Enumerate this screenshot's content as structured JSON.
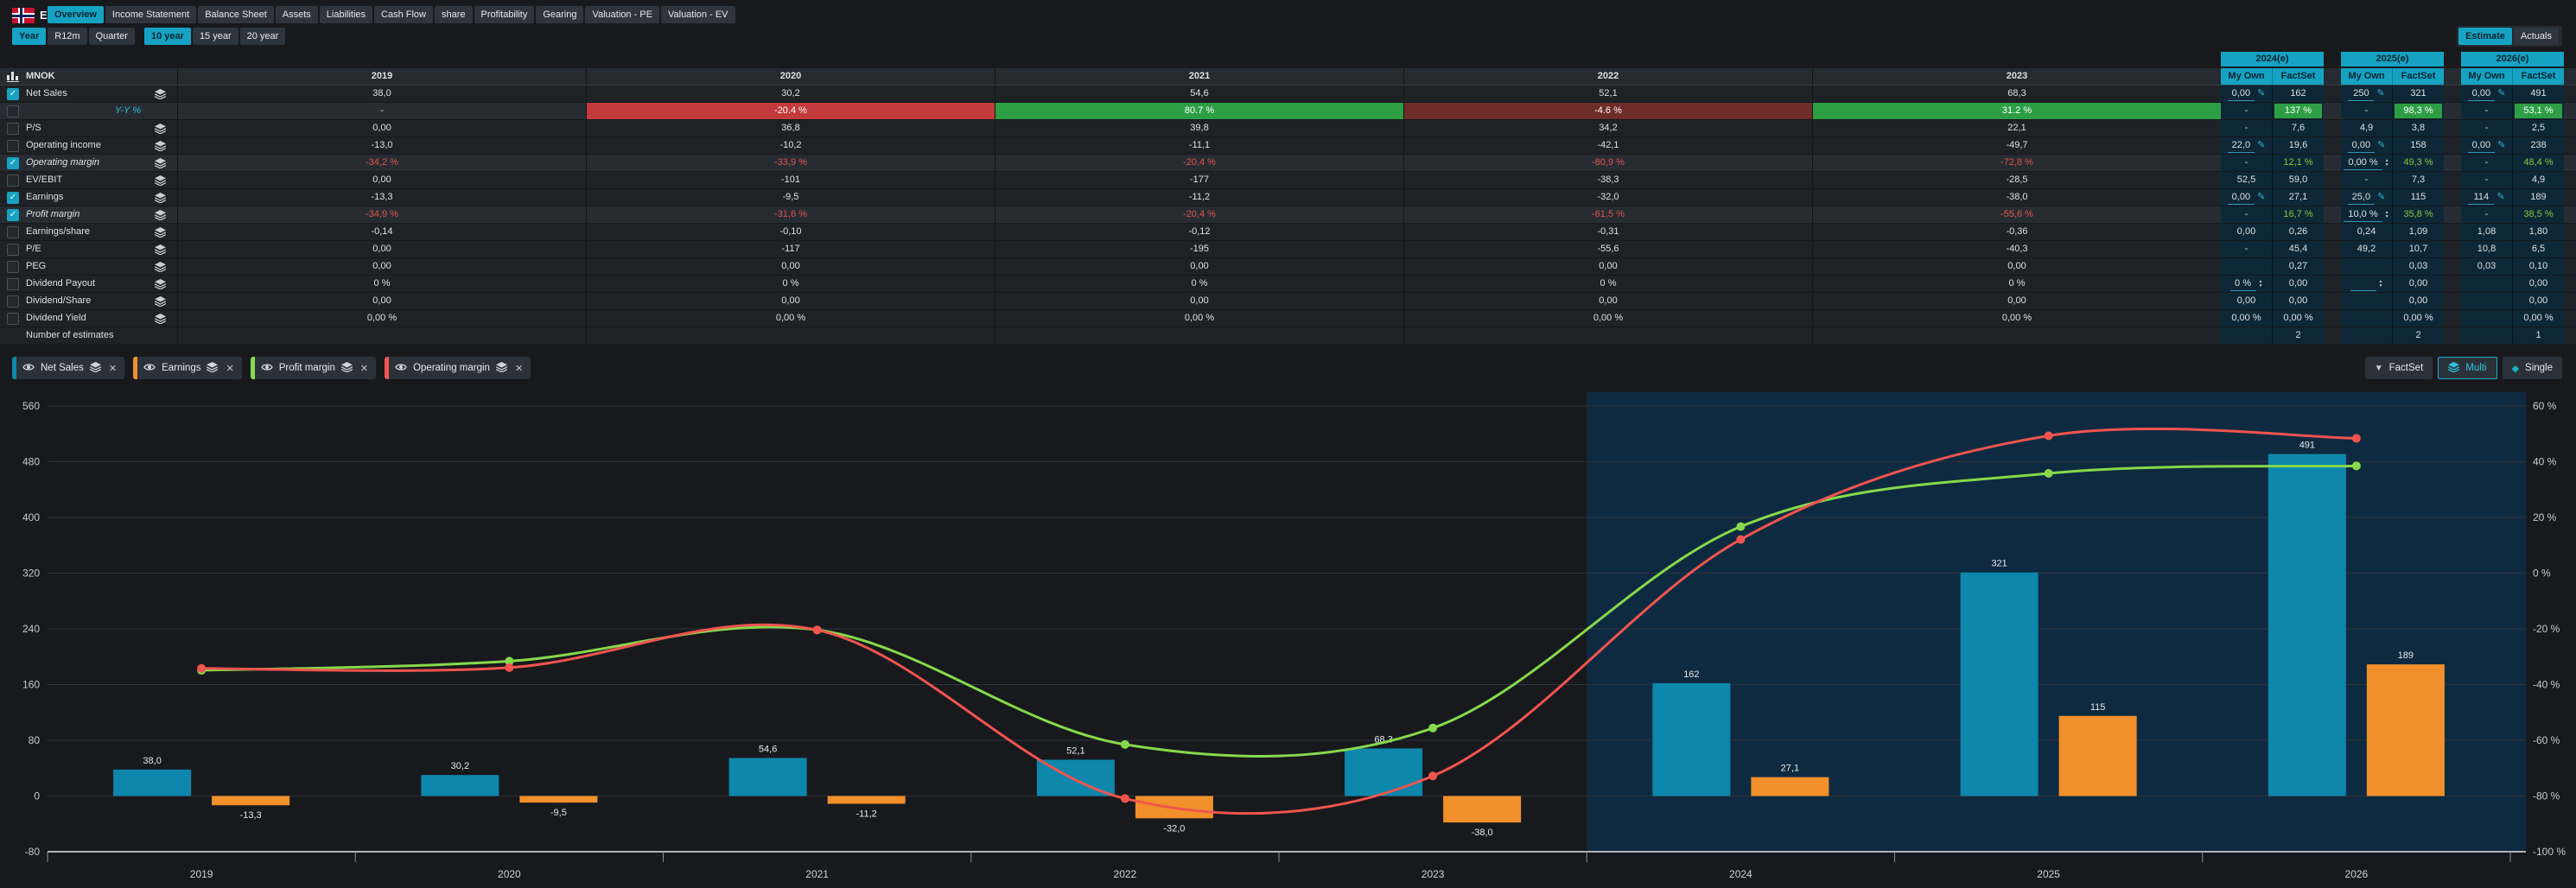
{
  "colors": {
    "accent": "#16a3c3",
    "page_bg": "#17191d",
    "row_bg": "#1e2226",
    "sub_row_bg": "#272c33",
    "est_cell_bg": "#0d2737",
    "est_overlay": "#0e2a40",
    "grid_line": "#2f343b",
    "net_sales": "#0d87ab",
    "earnings": "#f2902c",
    "profit_margin": "#86d94b",
    "operating_margin": "#f1544f",
    "pos_green": "#2e9e44",
    "neg_red": "#c23a3c",
    "neg_maroon": "#6e2d28",
    "text_red": "#e4534e",
    "text_green": "#8dc63f"
  },
  "brand": {
    "name": "ELABS",
    "flag": "norway-flag"
  },
  "nav": {
    "tabs": [
      {
        "label": "Overview",
        "active": true
      },
      {
        "label": "Income Statement"
      },
      {
        "label": "Balance Sheet"
      },
      {
        "label": "Assets"
      },
      {
        "label": "Liabilities"
      },
      {
        "label": "Cash Flow"
      },
      {
        "label": "share"
      },
      {
        "label": "Profitability"
      },
      {
        "label": "Gearing"
      },
      {
        "label": "Valuation - PE"
      },
      {
        "label": "Valuation - EV"
      }
    ]
  },
  "subbar": {
    "period": [
      {
        "label": "Year",
        "active": true
      },
      {
        "label": "R12m"
      },
      {
        "label": "Quarter"
      }
    ],
    "range": [
      {
        "label": "10 year",
        "active": true
      },
      {
        "label": "15 year"
      },
      {
        "label": "20 year"
      }
    ],
    "mode": [
      {
        "label": "Estimate",
        "active": true
      },
      {
        "label": "Actuals"
      }
    ]
  },
  "table": {
    "unit": "MNOK",
    "years": [
      "2019",
      "2020",
      "2021",
      "2022",
      "2023"
    ],
    "est_groups": [
      {
        "title": "2024(e)"
      },
      {
        "title": "2025(e)"
      },
      {
        "title": "2026(e)"
      }
    ],
    "est_subheaders": [
      "My Own",
      "FactSet"
    ],
    "rows": [
      {
        "key": "net-sales",
        "label": "Net Sales",
        "checkbox": true,
        "checked": true,
        "layers": true,
        "cells": [
          {
            "t": "38,0"
          },
          {
            "t": "30,2"
          },
          {
            "t": "54,6"
          },
          {
            "t": "52,1"
          },
          {
            "t": "68,3"
          }
        ],
        "est": [
          {
            "own": {
              "t": "0,00",
              "pencil": true,
              "u": true
            },
            "fs": {
              "t": "162"
            }
          },
          {
            "own": {
              "t": "250",
              "pencil": true,
              "u": true
            },
            "fs": {
              "t": "321"
            }
          },
          {
            "own": {
              "t": "0,00",
              "pencil": true,
              "u": true
            },
            "fs": {
              "t": "491"
            }
          }
        ]
      },
      {
        "key": "yoy",
        "label": "Y-Y %",
        "labelStyle": "yy",
        "checkbox": true,
        "checked": false,
        "layers": false,
        "sub": true,
        "cells": [
          {
            "t": "-"
          },
          {
            "t": "-20.4 %",
            "bar": "#c23a3c"
          },
          {
            "t": "80.7 %",
            "bar": "#2e9e44"
          },
          {
            "t": "-4.6 %",
            "bar": "#6e2d28"
          },
          {
            "t": "31.2 %",
            "bar": "#2e9e44"
          }
        ],
        "est": [
          {
            "own": {
              "t": "-"
            },
            "fs": {
              "t": "137 %",
              "chip": "#2e9e44"
            }
          },
          {
            "own": {
              "t": "-"
            },
            "fs": {
              "t": "98,3 %",
              "chip": "#2e9e44"
            }
          },
          {
            "own": {
              "t": "-"
            },
            "fs": {
              "t": "53,1 %",
              "chip": "#2e9e44"
            }
          }
        ]
      },
      {
        "key": "ps",
        "label": "P/S",
        "checkbox": true,
        "checked": false,
        "layers": true,
        "cells": [
          {
            "t": "0,00"
          },
          {
            "t": "36,8"
          },
          {
            "t": "39,8"
          },
          {
            "t": "34,2"
          },
          {
            "t": "22,1"
          }
        ],
        "est": [
          {
            "own": {
              "t": "-"
            },
            "fs": {
              "t": "7,6"
            }
          },
          {
            "own": {
              "t": "4,9"
            },
            "fs": {
              "t": "3,8"
            }
          },
          {
            "own": {
              "t": "-"
            },
            "fs": {
              "t": "2,5"
            }
          }
        ]
      },
      {
        "key": "operating-income",
        "label": "Operating income",
        "checkbox": true,
        "checked": false,
        "layers": true,
        "cells": [
          {
            "t": "-13,0"
          },
          {
            "t": "-10,2"
          },
          {
            "t": "-11,1"
          },
          {
            "t": "-42,1"
          },
          {
            "t": "-49,7"
          }
        ],
        "est": [
          {
            "own": {
              "t": "22,0",
              "pencil": true,
              "u": true
            },
            "fs": {
              "t": "19,6"
            }
          },
          {
            "own": {
              "t": "0,00",
              "pencil": true,
              "u": true
            },
            "fs": {
              "t": "158"
            }
          },
          {
            "own": {
              "t": "0,00",
              "pencil": true,
              "u": true
            },
            "fs": {
              "t": "238"
            }
          }
        ]
      },
      {
        "key": "operating-margin",
        "label": "Operating margin",
        "italic": true,
        "checkbox": true,
        "checked": true,
        "layers": true,
        "sub": true,
        "cells": [
          {
            "t": "-34,2 %",
            "red": true
          },
          {
            "t": "-33,9 %",
            "red": true
          },
          {
            "t": "-20,4 %",
            "red": true
          },
          {
            "t": "-80,9 %",
            "red": true
          },
          {
            "t": "-72,8 %",
            "red": true
          }
        ],
        "est": [
          {
            "own": {
              "t": "-"
            },
            "fs": {
              "t": "12,1 %",
              "green": true
            }
          },
          {
            "own": {
              "t": "0,00 %",
              "spin": true,
              "u": true
            },
            "fs": {
              "t": "49,3 %",
              "green": true
            }
          },
          {
            "own": {
              "t": "-"
            },
            "fs": {
              "t": "48,4 %",
              "green": true
            }
          }
        ]
      },
      {
        "key": "ev-ebit",
        "label": "EV/EBIT",
        "checkbox": true,
        "checked": false,
        "layers": true,
        "cells": [
          {
            "t": "0,00"
          },
          {
            "t": "-101"
          },
          {
            "t": "-177"
          },
          {
            "t": "-38,3"
          },
          {
            "t": "-28,5"
          }
        ],
        "est": [
          {
            "own": {
              "t": "52,5"
            },
            "fs": {
              "t": "59,0"
            }
          },
          {
            "own": {
              "t": "-"
            },
            "fs": {
              "t": "7,3"
            }
          },
          {
            "own": {
              "t": "-"
            },
            "fs": {
              "t": "4,9"
            }
          }
        ]
      },
      {
        "key": "earnings",
        "label": "Earnings",
        "checkbox": true,
        "checked": true,
        "layers": true,
        "cells": [
          {
            "t": "-13,3"
          },
          {
            "t": "-9,5"
          },
          {
            "t": "-11,2"
          },
          {
            "t": "-32,0"
          },
          {
            "t": "-38,0"
          }
        ],
        "est": [
          {
            "own": {
              "t": "0,00",
              "pencil": true,
              "u": true
            },
            "fs": {
              "t": "27,1"
            }
          },
          {
            "own": {
              "t": "25,0",
              "pencil": true,
              "u": true
            },
            "fs": {
              "t": "115"
            }
          },
          {
            "own": {
              "t": "114",
              "pencil": true,
              "u": true
            },
            "fs": {
              "t": "189"
            }
          }
        ]
      },
      {
        "key": "profit-margin",
        "label": "Profit margin",
        "italic": true,
        "checkbox": true,
        "checked": true,
        "layers": true,
        "sub": true,
        "cells": [
          {
            "t": "-34,9 %",
            "red": true
          },
          {
            "t": "-31,6 %",
            "red": true
          },
          {
            "t": "-20,4 %",
            "red": true
          },
          {
            "t": "-61,5 %",
            "red": true
          },
          {
            "t": "-55,6 %",
            "red": true
          }
        ],
        "est": [
          {
            "own": {
              "t": "-"
            },
            "fs": {
              "t": "16,7 %",
              "green": true
            }
          },
          {
            "own": {
              "t": "10,0 %",
              "spin": true,
              "u": true
            },
            "fs": {
              "t": "35,8 %",
              "green": true
            }
          },
          {
            "own": {
              "t": "-"
            },
            "fs": {
              "t": "38,5 %",
              "green": true
            }
          }
        ]
      },
      {
        "key": "earnings-share",
        "label": "Earnings/share",
        "checkbox": true,
        "checked": false,
        "layers": true,
        "cells": [
          {
            "t": "-0,14"
          },
          {
            "t": "-0,10"
          },
          {
            "t": "-0,12"
          },
          {
            "t": "-0,31"
          },
          {
            "t": "-0,36"
          }
        ],
        "est": [
          {
            "own": {
              "t": "0,00"
            },
            "fs": {
              "t": "0,26"
            }
          },
          {
            "own": {
              "t": "0,24"
            },
            "fs": {
              "t": "1,09"
            }
          },
          {
            "own": {
              "t": "1,08"
            },
            "fs": {
              "t": "1,80"
            }
          }
        ]
      },
      {
        "key": "pe",
        "label": "P/E",
        "checkbox": true,
        "checked": false,
        "layers": true,
        "cells": [
          {
            "t": "0,00"
          },
          {
            "t": "-117"
          },
          {
            "t": "-195"
          },
          {
            "t": "-55,6"
          },
          {
            "t": "-40,3"
          }
        ],
        "est": [
          {
            "own": {
              "t": "-"
            },
            "fs": {
              "t": "45,4"
            }
          },
          {
            "own": {
              "t": "49,2"
            },
            "fs": {
              "t": "10,7"
            }
          },
          {
            "own": {
              "t": "10,8"
            },
            "fs": {
              "t": "6,5"
            }
          }
        ]
      },
      {
        "key": "peg",
        "label": "PEG",
        "checkbox": true,
        "checked": false,
        "layers": true,
        "cells": [
          {
            "t": "0,00"
          },
          {
            "t": "0,00"
          },
          {
            "t": "0,00"
          },
          {
            "t": "0,00"
          },
          {
            "t": "0,00"
          }
        ],
        "est": [
          {
            "own": {
              "t": ""
            },
            "fs": {
              "t": "0,27"
            }
          },
          {
            "own": {
              "t": ""
            },
            "fs": {
              "t": "0,03"
            }
          },
          {
            "own": {
              "t": "0,03"
            },
            "fs": {
              "t": "0,10"
            }
          }
        ]
      },
      {
        "key": "dividend-payout",
        "label": "Dividend Payout",
        "checkbox": true,
        "checked": false,
        "layers": true,
        "cells": [
          {
            "t": "0 %"
          },
          {
            "t": "0 %"
          },
          {
            "t": "0 %"
          },
          {
            "t": "0 %"
          },
          {
            "t": "0 %"
          }
        ],
        "est": [
          {
            "own": {
              "t": "0 %",
              "spin": true,
              "u": true
            },
            "fs": {
              "t": "0,00"
            }
          },
          {
            "own": {
              "t": "",
              "spin": true,
              "u": true
            },
            "fs": {
              "t": "0,00"
            }
          },
          {
            "own": {
              "t": ""
            },
            "fs": {
              "t": "0,00"
            }
          }
        ]
      },
      {
        "key": "dividend-share",
        "label": "Dividend/Share",
        "checkbox": true,
        "checked": false,
        "layers": true,
        "cells": [
          {
            "t": "0,00"
          },
          {
            "t": "0,00"
          },
          {
            "t": "0,00"
          },
          {
            "t": "0,00"
          },
          {
            "t": "0,00"
          }
        ],
        "est": [
          {
            "own": {
              "t": "0,00"
            },
            "fs": {
              "t": "0,00"
            }
          },
          {
            "own": {
              "t": ""
            },
            "fs": {
              "t": "0,00"
            }
          },
          {
            "own": {
              "t": ""
            },
            "fs": {
              "t": "0,00"
            }
          }
        ]
      },
      {
        "key": "dividend-yield",
        "label": "Dividend Yield",
        "checkbox": true,
        "checked": false,
        "layers": true,
        "cells": [
          {
            "t": "0,00 %"
          },
          {
            "t": "0,00 %"
          },
          {
            "t": "0,00 %"
          },
          {
            "t": "0,00 %"
          },
          {
            "t": "0,00 %"
          }
        ],
        "est": [
          {
            "own": {
              "t": "0,00 %"
            },
            "fs": {
              "t": "0,00 %"
            }
          },
          {
            "own": {
              "t": ""
            },
            "fs": {
              "t": "0,00 %"
            }
          },
          {
            "own": {
              "t": ""
            },
            "fs": {
              "t": "0,00 %"
            }
          }
        ]
      },
      {
        "key": "num-estimates",
        "label": "Number of estimates",
        "checkbox": false,
        "layers": false,
        "cells": [
          {
            "t": ""
          },
          {
            "t": ""
          },
          {
            "t": ""
          },
          {
            "t": ""
          },
          {
            "t": ""
          }
        ],
        "est": [
          {
            "own": {
              "t": ""
            },
            "fs": {
              "t": "2"
            }
          },
          {
            "own": {
              "t": ""
            },
            "fs": {
              "t": "2"
            }
          },
          {
            "own": {
              "t": ""
            },
            "fs": {
              "t": "1"
            }
          }
        ]
      }
    ]
  },
  "legend": {
    "chips": [
      {
        "label": "Net Sales",
        "color": "#0d87ab"
      },
      {
        "label": "Earnings",
        "color": "#f2902c"
      },
      {
        "label": "Profit margin",
        "color": "#86d94b"
      },
      {
        "label": "Operating margin",
        "color": "#f1544f"
      }
    ]
  },
  "chart_toolbar": {
    "factset_label": "FactSet",
    "multi_label": "Multi",
    "single_label": "Single"
  },
  "chart_data": {
    "type": "bar+line combo",
    "x_years": [
      "2019",
      "2020",
      "2021",
      "2022",
      "2023",
      "2024",
      "2025",
      "2026"
    ],
    "estimate_from": "2024",
    "left_axis": {
      "min": -80,
      "max": 560,
      "step": 80
    },
    "right_axis": {
      "min": -100,
      "max": 60,
      "step": 20,
      "suffix": " %"
    },
    "grid": true,
    "bar_series": [
      {
        "name": "Net Sales",
        "color": "#0d87ab",
        "axis": "left",
        "values": [
          38.0,
          30.2,
          54.6,
          52.1,
          68.3,
          162,
          321,
          491
        ],
        "labels": [
          "38,0",
          "30,2",
          "54,6",
          "52,1",
          "68,3",
          "162",
          "321",
          "491"
        ]
      },
      {
        "name": "Earnings",
        "color": "#f2902c",
        "axis": "left",
        "values": [
          -13.3,
          -9.5,
          -11.2,
          -32.0,
          -38.0,
          27.1,
          115,
          189
        ],
        "labels": [
          "-13,3",
          "-9,5",
          "-11,2",
          "-32,0",
          "-38,0",
          "27,1",
          "115",
          "189"
        ]
      }
    ],
    "line_series": [
      {
        "name": "Profit margin",
        "color": "#86d94b",
        "axis": "right",
        "values": [
          -34.9,
          -31.6,
          -20.4,
          -61.5,
          -55.6,
          16.7,
          35.8,
          38.5
        ]
      },
      {
        "name": "Operating margin",
        "color": "#f1544f",
        "axis": "right",
        "values": [
          -34.2,
          -33.9,
          -20.4,
          -80.9,
          -72.8,
          12.1,
          49.3,
          48.4
        ]
      }
    ]
  }
}
